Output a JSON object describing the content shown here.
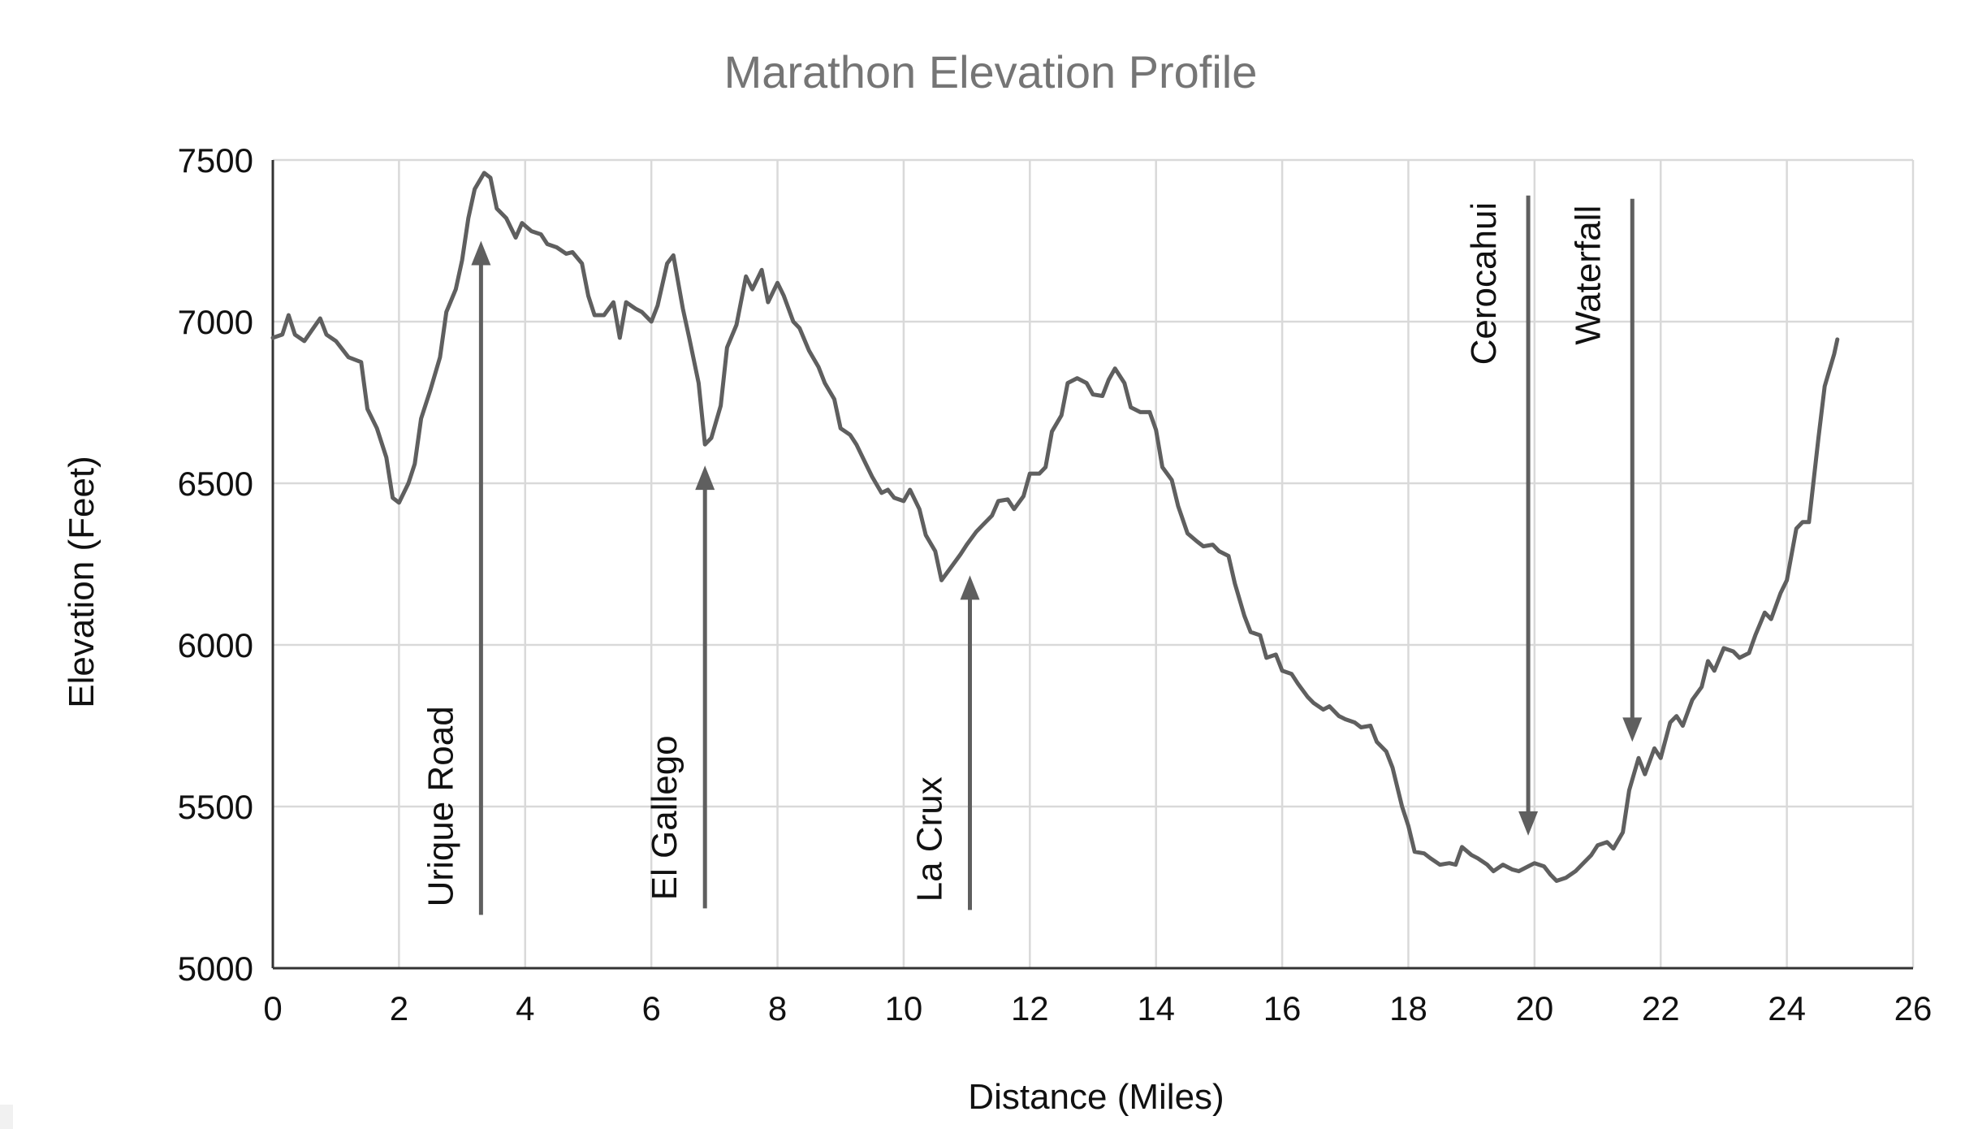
{
  "chart_data": {
    "type": "line",
    "title": "Marathon Elevation Profile",
    "xlabel": "Distance (Miles)",
    "ylabel": "Elevation (Feet)",
    "xlim": [
      0,
      26
    ],
    "ylim": [
      5000,
      7500
    ],
    "xticks": [
      0,
      2,
      4,
      6,
      8,
      10,
      12,
      14,
      16,
      18,
      20,
      22,
      24,
      26
    ],
    "yticks": [
      5000,
      5500,
      6000,
      6500,
      7000,
      7500
    ],
    "grid": true,
    "legend": "none",
    "series": [
      {
        "name": "Elevation",
        "color": "#5f5f5f",
        "points": [
          [
            0,
            6950
          ],
          [
            0.15,
            6960
          ],
          [
            0.25,
            7020
          ],
          [
            0.35,
            6960
          ],
          [
            0.5,
            6940
          ],
          [
            0.75,
            7010
          ],
          [
            0.85,
            6960
          ],
          [
            1.0,
            6940
          ],
          [
            1.2,
            6890
          ],
          [
            1.4,
            6875
          ],
          [
            1.5,
            6730
          ],
          [
            1.65,
            6670
          ],
          [
            1.8,
            6580
          ],
          [
            1.9,
            6455
          ],
          [
            2.0,
            6440
          ],
          [
            2.15,
            6500
          ],
          [
            2.25,
            6560
          ],
          [
            2.35,
            6700
          ],
          [
            2.5,
            6790
          ],
          [
            2.65,
            6890
          ],
          [
            2.75,
            7030
          ],
          [
            2.9,
            7100
          ],
          [
            3.0,
            7190
          ],
          [
            3.1,
            7320
          ],
          [
            3.2,
            7410
          ],
          [
            3.35,
            7460
          ],
          [
            3.45,
            7445
          ],
          [
            3.55,
            7350
          ],
          [
            3.7,
            7320
          ],
          [
            3.85,
            7260
          ],
          [
            3.95,
            7305
          ],
          [
            4.1,
            7280
          ],
          [
            4.25,
            7270
          ],
          [
            4.35,
            7240
          ],
          [
            4.5,
            7230
          ],
          [
            4.65,
            7210
          ],
          [
            4.75,
            7215
          ],
          [
            4.9,
            7180
          ],
          [
            5.0,
            7080
          ],
          [
            5.1,
            7020
          ],
          [
            5.25,
            7020
          ],
          [
            5.4,
            7060
          ],
          [
            5.5,
            6950
          ],
          [
            5.6,
            7060
          ],
          [
            5.75,
            7040
          ],
          [
            5.85,
            7030
          ],
          [
            6.0,
            7000
          ],
          [
            6.1,
            7050
          ],
          [
            6.25,
            7180
          ],
          [
            6.35,
            7205
          ],
          [
            6.5,
            7040
          ],
          [
            6.6,
            6950
          ],
          [
            6.75,
            6810
          ],
          [
            6.85,
            6620
          ],
          [
            6.95,
            6640
          ],
          [
            7.1,
            6740
          ],
          [
            7.2,
            6920
          ],
          [
            7.35,
            6990
          ],
          [
            7.5,
            7140
          ],
          [
            7.6,
            7100
          ],
          [
            7.75,
            7160
          ],
          [
            7.85,
            7060
          ],
          [
            8.0,
            7120
          ],
          [
            8.1,
            7080
          ],
          [
            8.25,
            7000
          ],
          [
            8.35,
            6980
          ],
          [
            8.5,
            6910
          ],
          [
            8.65,
            6860
          ],
          [
            8.75,
            6810
          ],
          [
            8.9,
            6760
          ],
          [
            9.0,
            6670
          ],
          [
            9.15,
            6650
          ],
          [
            9.25,
            6620
          ],
          [
            9.4,
            6560
          ],
          [
            9.5,
            6520
          ],
          [
            9.65,
            6470
          ],
          [
            9.75,
            6480
          ],
          [
            9.85,
            6455
          ],
          [
            10.0,
            6445
          ],
          [
            10.1,
            6480
          ],
          [
            10.25,
            6420
          ],
          [
            10.35,
            6340
          ],
          [
            10.5,
            6290
          ],
          [
            10.6,
            6200
          ],
          [
            10.75,
            6240
          ],
          [
            10.9,
            6280
          ],
          [
            11.0,
            6310
          ],
          [
            11.15,
            6350
          ],
          [
            11.25,
            6370
          ],
          [
            11.4,
            6400
          ],
          [
            11.5,
            6445
          ],
          [
            11.65,
            6450
          ],
          [
            11.75,
            6420
          ],
          [
            11.9,
            6460
          ],
          [
            12.0,
            6530
          ],
          [
            12.15,
            6530
          ],
          [
            12.25,
            6550
          ],
          [
            12.35,
            6660
          ],
          [
            12.5,
            6710
          ],
          [
            12.6,
            6810
          ],
          [
            12.75,
            6825
          ],
          [
            12.9,
            6810
          ],
          [
            13.0,
            6775
          ],
          [
            13.15,
            6770
          ],
          [
            13.25,
            6820
          ],
          [
            13.35,
            6855
          ],
          [
            13.5,
            6810
          ],
          [
            13.6,
            6735
          ],
          [
            13.75,
            6720
          ],
          [
            13.9,
            6720
          ],
          [
            14.0,
            6665
          ],
          [
            14.1,
            6550
          ],
          [
            14.25,
            6510
          ],
          [
            14.35,
            6430
          ],
          [
            14.5,
            6345
          ],
          [
            14.65,
            6320
          ],
          [
            14.75,
            6305
          ],
          [
            14.9,
            6310
          ],
          [
            15.0,
            6290
          ],
          [
            15.15,
            6275
          ],
          [
            15.25,
            6190
          ],
          [
            15.4,
            6090
          ],
          [
            15.5,
            6040
          ],
          [
            15.65,
            6030
          ],
          [
            15.75,
            5960
          ],
          [
            15.9,
            5970
          ],
          [
            16.0,
            5920
          ],
          [
            16.15,
            5910
          ],
          [
            16.25,
            5880
          ],
          [
            16.4,
            5840
          ],
          [
            16.5,
            5820
          ],
          [
            16.65,
            5800
          ],
          [
            16.75,
            5810
          ],
          [
            16.9,
            5780
          ],
          [
            17.0,
            5770
          ],
          [
            17.15,
            5760
          ],
          [
            17.25,
            5745
          ],
          [
            17.4,
            5750
          ],
          [
            17.5,
            5700
          ],
          [
            17.65,
            5670
          ],
          [
            17.75,
            5620
          ],
          [
            17.9,
            5500
          ],
          [
            18.0,
            5440
          ],
          [
            18.1,
            5360
          ],
          [
            18.25,
            5355
          ],
          [
            18.35,
            5340
          ],
          [
            18.5,
            5320
          ],
          [
            18.65,
            5325
          ],
          [
            18.75,
            5320
          ],
          [
            18.85,
            5375
          ],
          [
            19.0,
            5350
          ],
          [
            19.1,
            5340
          ],
          [
            19.25,
            5320
          ],
          [
            19.35,
            5300
          ],
          [
            19.5,
            5320
          ],
          [
            19.65,
            5305
          ],
          [
            19.75,
            5300
          ],
          [
            19.9,
            5315
          ],
          [
            20.0,
            5325
          ],
          [
            20.15,
            5315
          ],
          [
            20.25,
            5290
          ],
          [
            20.35,
            5270
          ],
          [
            20.5,
            5280
          ],
          [
            20.65,
            5300
          ],
          [
            20.75,
            5320
          ],
          [
            20.9,
            5350
          ],
          [
            21.0,
            5380
          ],
          [
            21.15,
            5390
          ],
          [
            21.25,
            5370
          ],
          [
            21.4,
            5420
          ],
          [
            21.5,
            5550
          ],
          [
            21.65,
            5650
          ],
          [
            21.75,
            5600
          ],
          [
            21.9,
            5680
          ],
          [
            22.0,
            5650
          ],
          [
            22.15,
            5760
          ],
          [
            22.25,
            5780
          ],
          [
            22.35,
            5750
          ],
          [
            22.5,
            5830
          ],
          [
            22.65,
            5870
          ],
          [
            22.75,
            5950
          ],
          [
            22.85,
            5920
          ],
          [
            23.0,
            5990
          ],
          [
            23.15,
            5980
          ],
          [
            23.25,
            5960
          ],
          [
            23.4,
            5975
          ],
          [
            23.5,
            6030
          ],
          [
            23.65,
            6100
          ],
          [
            23.75,
            6080
          ],
          [
            23.9,
            6160
          ],
          [
            24.0,
            6200
          ],
          [
            24.15,
            6360
          ],
          [
            24.25,
            6380
          ],
          [
            24.35,
            6380
          ],
          [
            24.5,
            6640
          ],
          [
            24.6,
            6800
          ],
          [
            24.75,
            6900
          ],
          [
            24.8,
            6945
          ]
        ]
      }
    ],
    "annotations": [
      {
        "label": "Urique Road",
        "x": 3.3,
        "y_start": 5165,
        "y_end": 7250,
        "direction": "up"
      },
      {
        "label": "El Gallego",
        "x": 6.85,
        "y_start": 5185,
        "y_end": 6555,
        "direction": "up"
      },
      {
        "label": "La Crux",
        "x": 11.05,
        "y_start": 5180,
        "y_end": 6215,
        "direction": "up"
      },
      {
        "label": "Cerocahui",
        "x": 19.9,
        "y_start": 7390,
        "y_end": 5410,
        "direction": "down"
      },
      {
        "label": "Waterfall",
        "x": 21.55,
        "y_start": 7380,
        "y_end": 5700,
        "direction": "down"
      }
    ]
  }
}
